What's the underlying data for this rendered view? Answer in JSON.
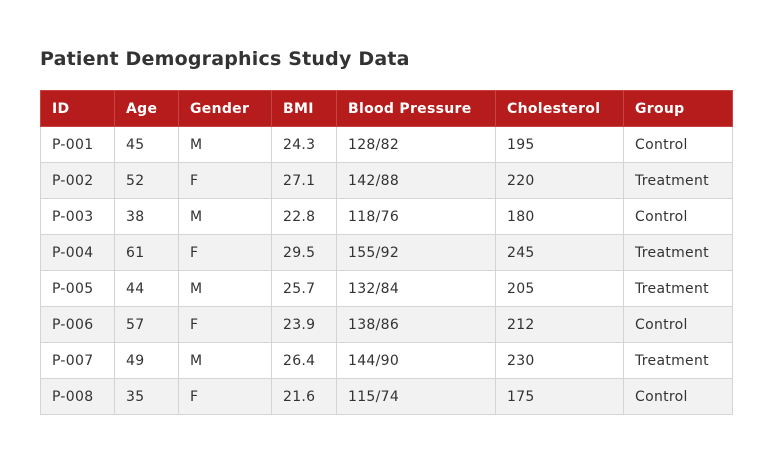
{
  "title": "Patient Demographics Study Data",
  "colors": {
    "header_bg": "#b71c1c",
    "header_text": "#ffffff",
    "row_alt_bg": "#f2f2f2",
    "border": "#d4d4d4"
  },
  "table": {
    "columns": [
      "ID",
      "Age",
      "Gender",
      "BMI",
      "Blood Pressure",
      "Cholesterol",
      "Group"
    ],
    "rows": [
      [
        "P-001",
        "45",
        "M",
        "24.3",
        "128/82",
        "195",
        "Control"
      ],
      [
        "P-002",
        "52",
        "F",
        "27.1",
        "142/88",
        "220",
        "Treatment"
      ],
      [
        "P-003",
        "38",
        "M",
        "22.8",
        "118/76",
        "180",
        "Control"
      ],
      [
        "P-004",
        "61",
        "F",
        "29.5",
        "155/92",
        "245",
        "Treatment"
      ],
      [
        "P-005",
        "44",
        "M",
        "25.7",
        "132/84",
        "205",
        "Treatment"
      ],
      [
        "P-006",
        "57",
        "F",
        "23.9",
        "138/86",
        "212",
        "Control"
      ],
      [
        "P-007",
        "49",
        "M",
        "26.4",
        "144/90",
        "230",
        "Treatment"
      ],
      [
        "P-008",
        "35",
        "F",
        "21.6",
        "115/74",
        "175",
        "Control"
      ]
    ]
  }
}
